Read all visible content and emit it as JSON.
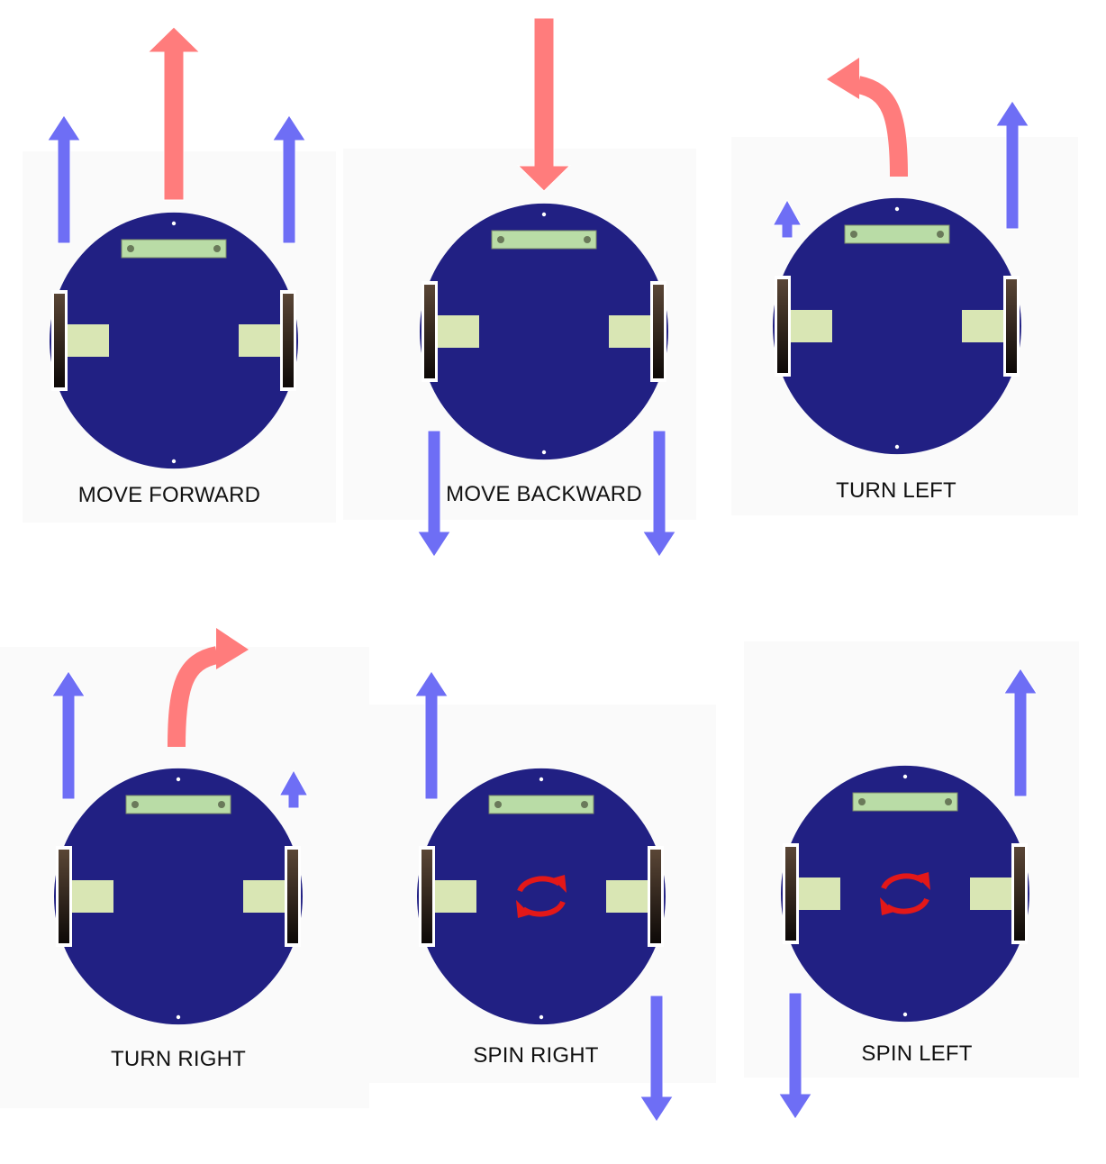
{
  "colors": {
    "background": "#ffffff",
    "panel": "#fafafa",
    "chassis": "#212083",
    "mount": "#d9e6b4",
    "sensor_board": "#b9dca6",
    "wheel": "#3a2a22",
    "robot_arrow": "#ff7c7c",
    "wheel_arrow": "#6e6ef5",
    "spin_symbol": "#e31818",
    "caption_text": "#111111"
  },
  "icons": {
    "robot": "two-wheel-robot-chassis-icon",
    "wheel_motion": "straight-arrow-icon",
    "robot_motion": "red-arrow-icon",
    "spin": "rotate-arrows-icon"
  },
  "panels": [
    {
      "id": "move-forward",
      "caption": "MOVE FORWARD",
      "left_wheel": "forward",
      "right_wheel": "forward",
      "robot_motion": "forward"
    },
    {
      "id": "move-backward",
      "caption": "MOVE BACKWARD",
      "left_wheel": "backward",
      "right_wheel": "backward",
      "robot_motion": "backward"
    },
    {
      "id": "turn-left",
      "caption": "TURN LEFT",
      "left_wheel": "slow-forward",
      "right_wheel": "forward",
      "robot_motion": "curve-left"
    },
    {
      "id": "turn-right",
      "caption": "TURN RIGHT",
      "left_wheel": "forward",
      "right_wheel": "slow-forward",
      "robot_motion": "curve-right"
    },
    {
      "id": "spin-right",
      "caption": "SPIN RIGHT",
      "left_wheel": "forward",
      "right_wheel": "backward",
      "robot_motion": "spin"
    },
    {
      "id": "spin-left",
      "caption": "SPIN LEFT",
      "left_wheel": "backward",
      "right_wheel": "forward",
      "robot_motion": "spin"
    }
  ]
}
